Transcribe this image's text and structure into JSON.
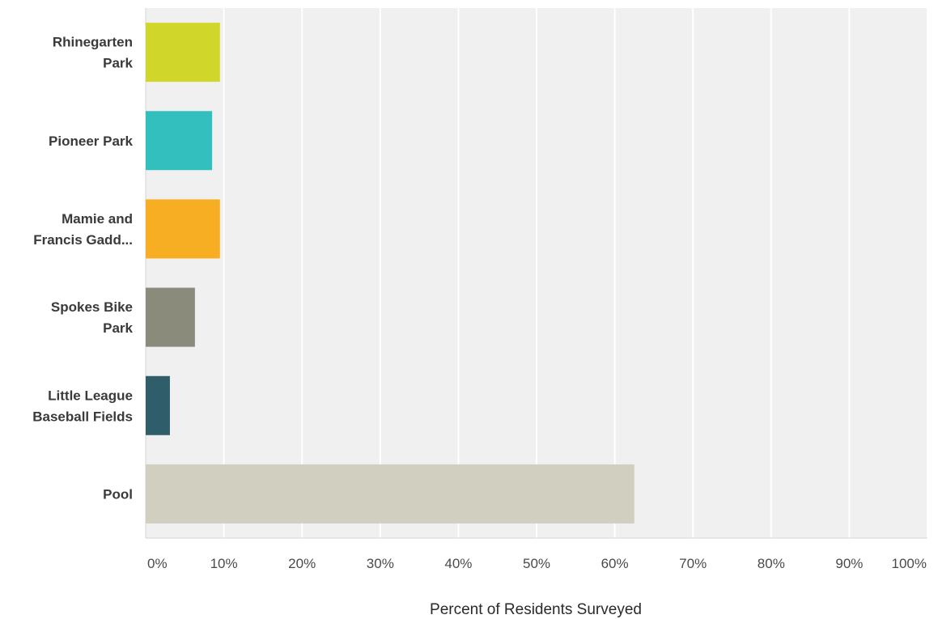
{
  "chart_data": {
    "type": "bar",
    "orientation": "horizontal",
    "title": "",
    "xlabel": "Percent of Residents Surveyed",
    "ylabel": "",
    "xlim": [
      0,
      100
    ],
    "x_ticks": [
      0,
      10,
      20,
      30,
      40,
      50,
      60,
      70,
      80,
      90,
      100
    ],
    "x_tick_labels": [
      "0%",
      "10%",
      "20%",
      "30%",
      "40%",
      "50%",
      "60%",
      "70%",
      "80%",
      "90%",
      "100%"
    ],
    "grid": true,
    "categories": [
      [
        "Rhinegarten",
        "Park"
      ],
      [
        "Pioneer Park"
      ],
      [
        "Mamie and",
        "Francis Gadd..."
      ],
      [
        "Spokes Bike",
        "Park"
      ],
      [
        "Little League",
        "Baseball Fields"
      ],
      [
        "Pool"
      ]
    ],
    "values": [
      9.5,
      8.5,
      9.5,
      6.3,
      3.1,
      62.5
    ],
    "colors": [
      "#d1d62b",
      "#34bfbf",
      "#f8ae22",
      "#8a8b7b",
      "#2f5d6a",
      "#d0cfc0"
    ],
    "plot_background": "#f0f0f0",
    "grid_color": "#ffffff"
  }
}
